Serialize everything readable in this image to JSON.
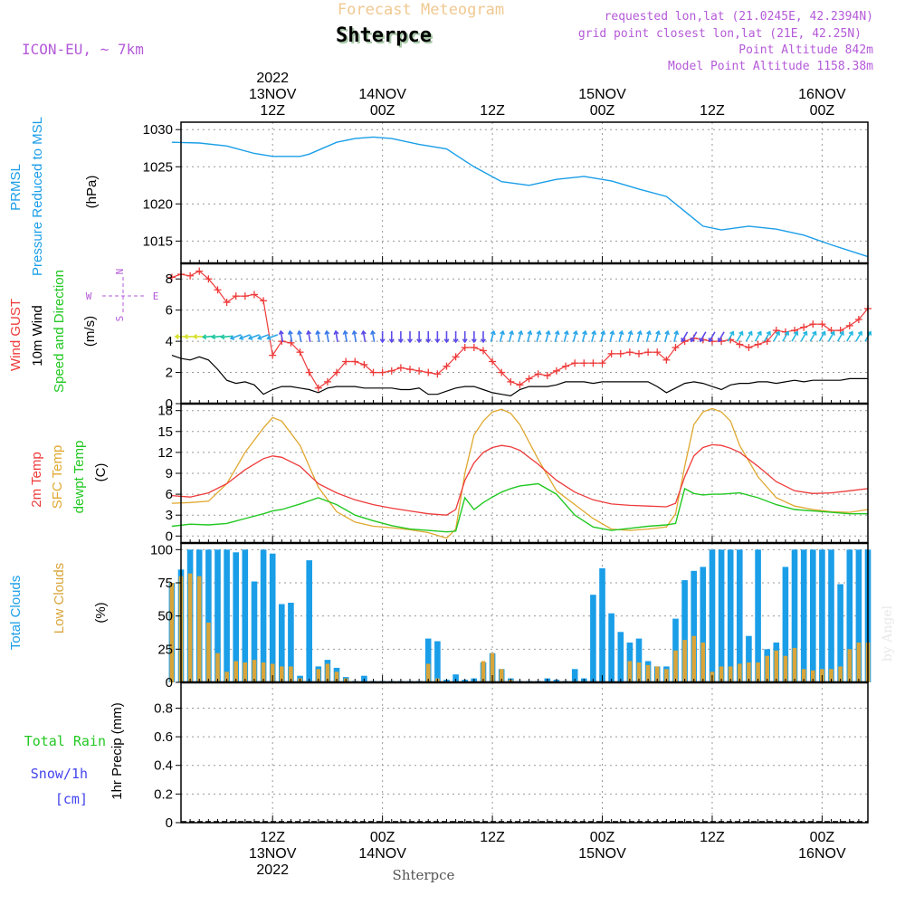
{
  "header": {
    "title": "Forecast Meteogram",
    "station": "Shterpce",
    "model": "ICON-EU, ~ 7km",
    "requested": "requested lon,lat (21.0245E, 42.2394N)",
    "grid_point": "grid point closest lon,lat (21E, 42.25N)",
    "point_altitude": "Point Altitude 842m",
    "model_altitude": "Model Point Altitude 1158.38m",
    "credit": "by Angel",
    "footer_station": "Shterpce"
  },
  "colors": {
    "pressure": "#1a9ee8",
    "gust": "#ee3a3a",
    "wind": "#000000",
    "temp": "#ee3a3a",
    "sfc_temp": "#e0a830",
    "dewpt": "#22c822",
    "total_clouds": "#1a9ee8",
    "low_clouds": "#d9a53a",
    "rain": "#22c822",
    "snow": "#4444ee",
    "purple": "#b45ad8"
  },
  "chart_data": [
    {
      "type": "line",
      "panel": "pressure",
      "ylabel_lines": [
        "PRMSL",
        "Pressure Reduced to MSL"
      ],
      "unit": "(hPa)",
      "ylim": [
        1012,
        1031
      ],
      "yticks": [
        1015,
        1020,
        1025,
        1030
      ],
      "x_hours": [
        0,
        3,
        6,
        9,
        11,
        12,
        14,
        15,
        18,
        20,
        22,
        24,
        27,
        30,
        33,
        36,
        39,
        42,
        45,
        48,
        51,
        54,
        57,
        58,
        60,
        63,
        66,
        69,
        72,
        75,
        76
      ],
      "series": [
        {
          "values": [
            1028.3,
            1028.2,
            1027.8,
            1026.8,
            1026.4,
            1026.4,
            1026.4,
            1026.7,
            1028.3,
            1028.8,
            1029.0,
            1028.8,
            1028.0,
            1027.4,
            1025.0,
            1023.0,
            1022.5,
            1023.3,
            1023.7,
            1023.1,
            1022.0,
            1021.0,
            1018.0,
            1017.0,
            1016.5,
            1017.0,
            1016.6,
            1015.8,
            1014.5,
            1013.3,
            1012.9
          ]
        }
      ]
    },
    {
      "type": "line",
      "panel": "wind",
      "ylabel_lines": [
        "Wind GUST",
        "10m Wind",
        "Speed and Direction"
      ],
      "unit": "(m/s)",
      "ylim": [
        0,
        9
      ],
      "yticks": [
        0,
        2,
        4,
        6,
        8
      ],
      "compass": {
        "n": "N",
        "w": "W",
        "e": "E",
        "s": "S"
      },
      "x_hours": [
        0,
        1,
        2,
        3,
        4,
        5,
        6,
        7,
        8,
        9,
        10,
        11,
        12,
        13,
        14,
        15,
        16,
        17,
        18,
        19,
        20,
        21,
        22,
        23,
        24,
        25,
        26,
        27,
        28,
        29,
        30,
        31,
        32,
        33,
        34,
        35,
        36,
        37,
        38,
        39,
        40,
        41,
        42,
        43,
        44,
        45,
        46,
        47,
        48,
        49,
        50,
        51,
        52,
        53,
        54,
        55,
        56,
        57,
        58,
        59,
        60,
        61,
        62,
        63,
        64,
        65,
        66,
        67,
        68,
        69,
        70,
        71,
        72,
        73,
        74,
        75,
        76
      ],
      "series": [
        {
          "name": "Wind GUST",
          "values": [
            8.1,
            8.3,
            8.2,
            8.5,
            8.0,
            7.3,
            6.5,
            6.9,
            6.9,
            7.0,
            6.6,
            3.1,
            4.0,
            3.9,
            3.3,
            2.0,
            1.0,
            1.4,
            2.0,
            2.7,
            2.7,
            2.5,
            2.0,
            2.0,
            2.1,
            2.3,
            2.2,
            2.1,
            2.0,
            1.9,
            2.4,
            3.0,
            3.6,
            3.6,
            3.4,
            2.7,
            2.0,
            1.4,
            1.2,
            1.6,
            1.9,
            1.8,
            2.1,
            2.4,
            2.6,
            2.6,
            2.6,
            2.6,
            3.2,
            3.2,
            3.3,
            3.2,
            3.3,
            3.3,
            2.8,
            3.6,
            4.0,
            4.2,
            4.1,
            4.0,
            4.0,
            4.1,
            3.8,
            3.6,
            3.8,
            4.0,
            4.7,
            4.6,
            4.7,
            4.9,
            5.1,
            5.1,
            4.7,
            4.7,
            5.0,
            5.4,
            6.1
          ]
        },
        {
          "name": "10m Wind",
          "values": [
            3.1,
            2.9,
            2.8,
            3.0,
            2.8,
            2.2,
            1.5,
            1.3,
            1.4,
            1.2,
            0.6,
            0.9,
            1.1,
            1.1,
            1.0,
            0.9,
            0.7,
            1.0,
            1.1,
            1.1,
            1.1,
            1.0,
            1.0,
            1.0,
            1.0,
            0.9,
            0.9,
            1.0,
            0.6,
            0.6,
            0.8,
            1.0,
            1.1,
            1.1,
            0.9,
            0.7,
            0.6,
            0.5,
            0.9,
            1.1,
            1.1,
            1.1,
            1.2,
            1.4,
            1.4,
            1.4,
            1.3,
            1.4,
            1.4,
            1.4,
            1.4,
            1.4,
            1.4,
            1.1,
            0.7,
            1.0,
            1.3,
            1.4,
            1.3,
            1.1,
            0.9,
            1.2,
            1.3,
            1.3,
            1.4,
            1.4,
            1.3,
            1.4,
            1.5,
            1.4,
            1.5,
            1.5,
            1.5,
            1.5,
            1.6,
            1.6,
            1.6
          ]
        }
      ]
    },
    {
      "type": "line",
      "panel": "temperature",
      "ylabel_lines": [
        "2m Temp",
        "SFC Temp",
        "dewpt Temp"
      ],
      "unit": "(C)",
      "ylim": [
        -1,
        19
      ],
      "yticks": [
        0,
        3,
        6,
        9,
        12,
        15,
        18
      ],
      "x_hours": [
        0,
        2,
        4,
        6,
        8,
        10,
        11,
        12,
        14,
        16,
        18,
        20,
        22,
        24,
        26,
        28,
        30,
        31,
        32,
        33,
        34,
        35,
        36,
        37,
        38,
        40,
        42,
        44,
        46,
        48,
        50,
        52,
        54,
        55,
        56,
        57,
        58,
        59,
        60,
        61,
        62,
        64,
        66,
        68,
        70,
        72,
        74,
        76
      ],
      "series": [
        {
          "name": "2m Temp",
          "values": [
            5.8,
            5.6,
            6.2,
            7.5,
            9.5,
            11.1,
            11.5,
            11.3,
            10.0,
            7.5,
            6.2,
            5.2,
            4.5,
            4.0,
            3.6,
            3.2,
            3.0,
            3.8,
            8.0,
            10.5,
            12.0,
            12.7,
            13.0,
            12.8,
            12.3,
            10.3,
            8.0,
            6.3,
            5.2,
            4.6,
            4.4,
            4.3,
            4.2,
            4.7,
            8.5,
            11.5,
            12.7,
            13.1,
            13.0,
            12.6,
            12.0,
            10.0,
            7.8,
            6.5,
            6.1,
            6.2,
            6.5,
            6.8
          ]
        },
        {
          "name": "SFC Temp",
          "values": [
            4.7,
            4.8,
            5.0,
            7.5,
            12.0,
            15.5,
            17.0,
            16.5,
            13.0,
            7.0,
            3.5,
            2.0,
            1.4,
            1.2,
            0.9,
            0.5,
            -0.3,
            1.0,
            9.0,
            14.5,
            16.5,
            17.8,
            18.2,
            17.6,
            16.0,
            11.0,
            6.5,
            4.5,
            2.5,
            1.0,
            0.8,
            1.0,
            1.3,
            3.2,
            10.0,
            16.0,
            17.8,
            18.3,
            17.8,
            16.5,
            13.0,
            8.5,
            5.5,
            4.3,
            3.8,
            3.5,
            3.4,
            3.8
          ]
        },
        {
          "name": "dewpt Temp",
          "values": [
            1.4,
            1.7,
            1.6,
            1.8,
            2.5,
            3.2,
            3.6,
            3.8,
            4.6,
            5.5,
            4.5,
            3.0,
            2.2,
            1.5,
            1.0,
            0.8,
            0.6,
            0.7,
            5.5,
            3.8,
            4.8,
            5.6,
            6.3,
            6.8,
            7.2,
            7.5,
            6.0,
            3.0,
            1.3,
            0.8,
            1.1,
            1.4,
            1.6,
            1.8,
            6.8,
            6.1,
            5.9,
            6.0,
            6.0,
            6.1,
            6.2,
            5.5,
            4.5,
            3.8,
            3.6,
            3.4,
            3.2,
            3.2
          ]
        }
      ]
    },
    {
      "type": "bar",
      "panel": "clouds",
      "ylabel_lines": [
        "Total Clouds",
        "Low Clouds"
      ],
      "unit": "(%)",
      "ylim": [
        0,
        105
      ],
      "yticks": [
        0,
        25,
        50,
        75,
        100
      ],
      "x_hours": [
        0,
        1,
        2,
        3,
        4,
        5,
        6,
        7,
        8,
        9,
        10,
        11,
        12,
        13,
        14,
        15,
        16,
        17,
        18,
        19,
        20,
        21,
        22,
        23,
        24,
        25,
        26,
        27,
        28,
        29,
        30,
        31,
        32,
        33,
        34,
        35,
        36,
        37,
        38,
        39,
        40,
        41,
        42,
        43,
        44,
        45,
        46,
        47,
        48,
        49,
        50,
        51,
        52,
        53,
        54,
        55,
        56,
        57,
        58,
        59,
        60,
        61,
        62,
        63,
        64,
        65,
        66,
        67,
        68,
        69,
        70,
        71,
        72,
        73,
        74,
        75,
        76
      ],
      "series": [
        {
          "name": "Total Clouds",
          "values": [
            75,
            85,
            100,
            100,
            100,
            100,
            100,
            98,
            100,
            76,
            100,
            97,
            59,
            60,
            5,
            92,
            12,
            17,
            11,
            4,
            1,
            5,
            1,
            1,
            1,
            1,
            1,
            1,
            33,
            31,
            2,
            6,
            2,
            3,
            15,
            22,
            10,
            3,
            1,
            1,
            1,
            3,
            2,
            1,
            10,
            3,
            66,
            86,
            52,
            38,
            30,
            33,
            16,
            12,
            12,
            48,
            77,
            84,
            87,
            100,
            100,
            100,
            100,
            35,
            100,
            25,
            30,
            87,
            100,
            100,
            100,
            100,
            100,
            74,
            100,
            100,
            100
          ]
        },
        {
          "name": "Low Clouds",
          "values": [
            75,
            80,
            82,
            80,
            45,
            22,
            8,
            16,
            15,
            17,
            15,
            14,
            12,
            12,
            3,
            0,
            10,
            14,
            8,
            3,
            0,
            0,
            0,
            0,
            0,
            0,
            0,
            0,
            14,
            3,
            0,
            0,
            0,
            0,
            16,
            22,
            10,
            2,
            0,
            0,
            0,
            0,
            0,
            0,
            0,
            0,
            0,
            0,
            0,
            0,
            16,
            15,
            13,
            12,
            10,
            24,
            32,
            35,
            30,
            8,
            12,
            12,
            14,
            15,
            15,
            20,
            24,
            20,
            26,
            10,
            9,
            10,
            10,
            12,
            25,
            30,
            30
          ]
        }
      ]
    },
    {
      "type": "line",
      "panel": "precip",
      "ylabel_lines": [
        "Total Rain",
        "Snow/1h",
        "[cm]"
      ],
      "unit_label": "1hr Precip (mm)",
      "ylim": [
        0,
        0.98
      ],
      "yticks": [
        0,
        0.2,
        0.4,
        0.6,
        0.8
      ],
      "ytick_labels": [
        "0",
        "0.2",
        "0.4",
        "0.6",
        "0.8"
      ],
      "x_hours": [
        0,
        76
      ],
      "series": [
        {
          "name": "Total Rain",
          "values": [
            0,
            0
          ]
        }
      ]
    }
  ],
  "time_axis": {
    "top": [
      {
        "hour": 11,
        "lines": [
          "2022",
          "13NOV",
          "12Z"
        ]
      },
      {
        "hour": 23,
        "lines": [
          "14NOV",
          "00Z"
        ]
      },
      {
        "hour": 35,
        "lines": [
          "12Z"
        ]
      },
      {
        "hour": 47,
        "lines": [
          "15NOV",
          "00Z"
        ]
      },
      {
        "hour": 59,
        "lines": [
          "12Z"
        ]
      },
      {
        "hour": 71,
        "lines": [
          "16NOV",
          "00Z"
        ]
      }
    ],
    "bottom": [
      {
        "hour": 11,
        "lines": [
          "12Z",
          "13NOV",
          "2022"
        ]
      },
      {
        "hour": 23,
        "lines": [
          "00Z",
          "14NOV"
        ]
      },
      {
        "hour": 35,
        "lines": [
          "12Z"
        ]
      },
      {
        "hour": 47,
        "lines": [
          "00Z",
          "15NOV"
        ]
      },
      {
        "hour": 59,
        "lines": [
          "12Z"
        ]
      },
      {
        "hour": 71,
        "lines": [
          "00Z",
          "16NOV"
        ]
      }
    ]
  }
}
